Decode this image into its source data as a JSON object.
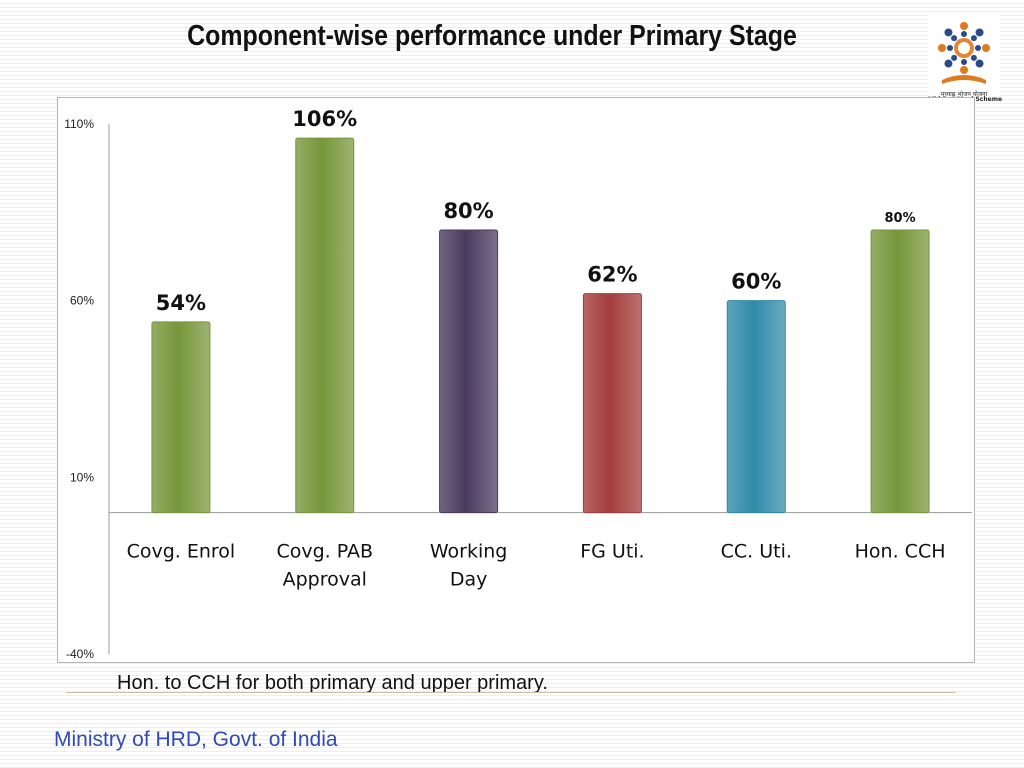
{
  "slide": {
    "title": "Component-wise performance under Primary Stage",
    "footnote": "Hon. to CCH for both primary and upper primary.",
    "footer": "Ministry of HRD, Govt. of India"
  },
  "logo": {
    "icon": "mid-day-meal-logo",
    "caption_hindi": "मध्याह्न भोजन योजना",
    "caption_english": "Mid Day Meal Scheme",
    "colors": {
      "figures": "#2a4a8a",
      "accent": "#e07a1f",
      "book": "#e07a1f"
    }
  },
  "chart_data": {
    "type": "bar",
    "categories": [
      "Covg. Enrol",
      "Covg. PAB\nApproval",
      "Working\nDay",
      "FG Uti.",
      "CC. Uti.",
      "Hon. CCH"
    ],
    "values": [
      54,
      106,
      80,
      62,
      60,
      80
    ],
    "data_labels": [
      "54%",
      "106%",
      "80%",
      "62%",
      "60%",
      "80%"
    ],
    "colors": [
      "#77963a",
      "#77963a",
      "#4a3a5f",
      "#a33c3a",
      "#2f8aa8",
      "#77963a"
    ],
    "ylim": [
      -40,
      110
    ],
    "yticks": [
      110,
      60,
      10,
      -40
    ],
    "ytick_labels": [
      "110%",
      "60%",
      "10%",
      "-40%"
    ],
    "baseline": 0,
    "title": "",
    "xlabel": "",
    "ylabel": "",
    "grid": false,
    "legend": "none"
  }
}
